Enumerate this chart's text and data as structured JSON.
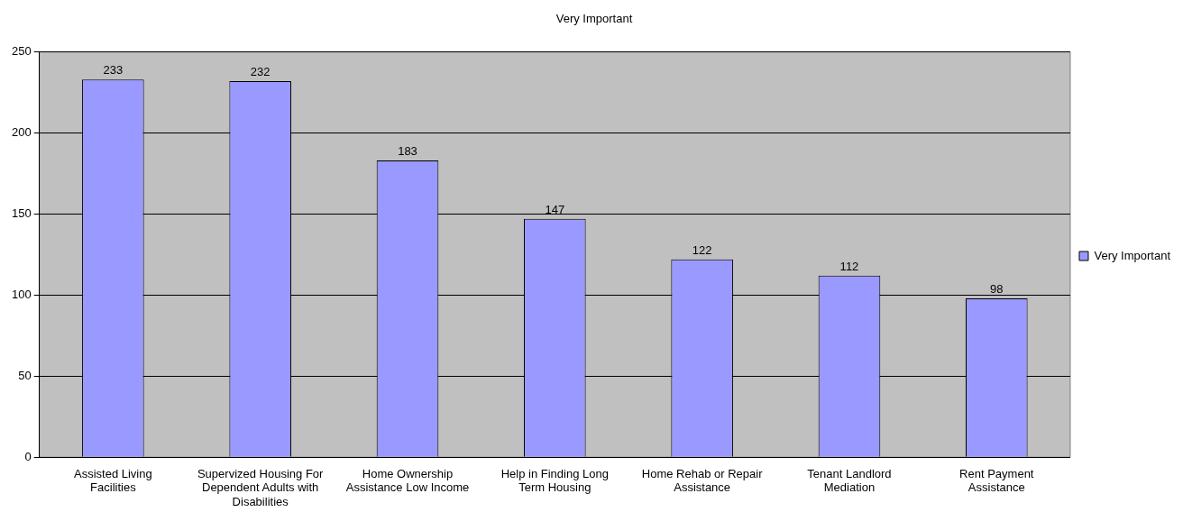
{
  "chart_data": {
    "type": "bar",
    "title": "Very Important",
    "categories": [
      "Assisted Living Facilities",
      "Supervized Housing For Dependent Adults with Disabilities",
      "Home Ownership Assistance Low Income",
      "Help in Finding Long Term Housing",
      "Home Rehab or Repair Assistance",
      "Tenant Landlord Mediation",
      "Rent Payment Assistance"
    ],
    "series": [
      {
        "name": "Very Important",
        "color": "#9999ff",
        "values": [
          233,
          232,
          183,
          147,
          122,
          112,
          98
        ]
      }
    ],
    "ylim": [
      0,
      250
    ],
    "yticks": [
      0,
      50,
      100,
      150,
      200,
      250
    ],
    "grid": "y",
    "legend": "right",
    "data_labels": true
  }
}
